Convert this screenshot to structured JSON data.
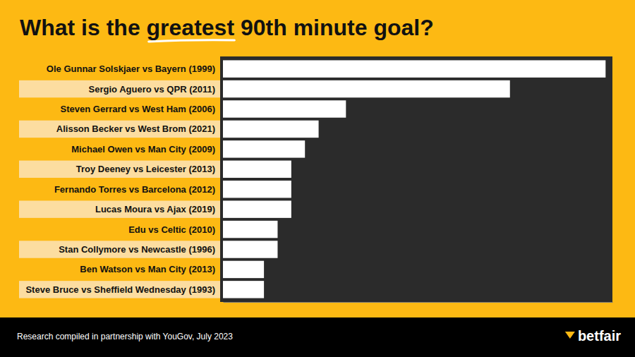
{
  "chart_data": {
    "type": "bar",
    "orientation": "horizontal",
    "title": "What is the greatest 90th minute goal?",
    "categories": [
      "Ole Gunnar Solskjaer vs Bayern (1999)",
      "Sergio Aguero vs QPR (2011)",
      "Steven Gerrard vs West Ham (2006)",
      "Alisson Becker vs West Brom (2021)",
      "Michael Owen vs Man City (2009)",
      "Troy Deeney vs Leicester (2013)",
      "Fernando Torres vs Barcelona (2012)",
      "Lucas Moura vs Ajax (2019)",
      "Edu vs Celtic (2010)",
      "Stan Collymore vs Newcastle (1996)",
      "Ben Watson vs Man City (2013)",
      "Steve Bruce vs Sheffield Wednesday (1993)"
    ],
    "values": [
      28,
      21,
      9,
      7,
      6,
      5,
      5,
      5,
      4,
      4,
      3,
      3
    ],
    "color": "#ffffff",
    "xlim": [
      0,
      28.5
    ],
    "xticks": [],
    "tick_labels": "y",
    "grid": false,
    "data_labels": false
  },
  "footer": {
    "note": "Research compiled in partnership with YouGov, July 2023",
    "brand": "betfair"
  }
}
